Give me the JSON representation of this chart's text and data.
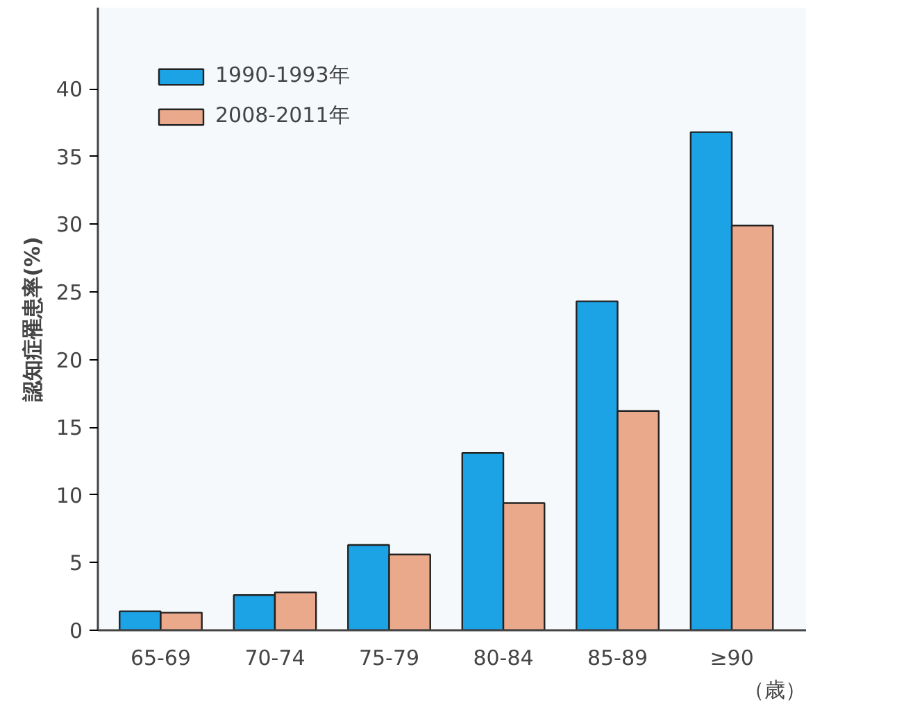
{
  "chart_data": {
    "type": "bar",
    "ylabel": "認知症罹患率(%)",
    "xlabel": "（歳）",
    "categories": [
      "65-69",
      "70-74",
      "75-79",
      "80-84",
      "85-89",
      "≥90"
    ],
    "series": [
      {
        "name": "1990-1993年",
        "color": "#1ba3e6",
        "values": [
          1.4,
          2.6,
          6.3,
          13.1,
          24.3,
          36.8
        ]
      },
      {
        "name": "2008-2011年",
        "color": "#eba98b",
        "values": [
          1.3,
          2.8,
          5.6,
          9.4,
          16.2,
          29.9
        ]
      }
    ],
    "ylim": [
      0,
      46
    ],
    "yticks": [
      0,
      5,
      10,
      15,
      20,
      25,
      30,
      35,
      40
    ],
    "grid": false,
    "legend": "top left"
  }
}
